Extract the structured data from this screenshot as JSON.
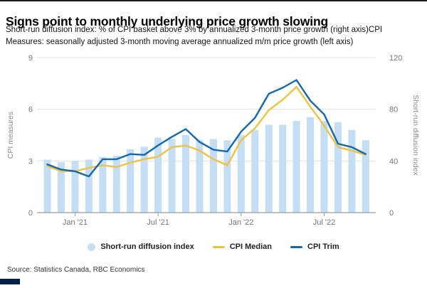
{
  "header": {
    "title": "Signs point to monthly underlying price growth slowing",
    "subtitle_line1": "Short-run diffusion index: % of CPI basket above 3% by annualized 3-month price growth (right axis)CPI",
    "subtitle_line2": "Measures: seasonally adjusted 3-month moving average annualized m/m price growth (left axis)"
  },
  "chart_data": {
    "type": "combo-bar-line",
    "categories": [
      "Nov 2020",
      "Dec 2020",
      "Jan 2021",
      "Feb 2021",
      "Mar 2021",
      "Apr 2021",
      "May 2021",
      "Jun 2021",
      "Jul 2021",
      "Aug 2021",
      "Sep 2021",
      "Oct 2021",
      "Nov 2021",
      "Dec 2021",
      "Jan 2022",
      "Feb 2022",
      "Mar 2022",
      "Apr 2022",
      "May 2022",
      "Jun 2022",
      "Jul 2022",
      "Aug 2022",
      "Sep 2022",
      "Oct 2022"
    ],
    "series": [
      {
        "name": "Short-run diffusion index",
        "type": "bar",
        "axis": "right",
        "color": "#c3def5",
        "values": [
          41,
          39,
          40,
          41,
          43,
          44,
          49,
          51,
          58,
          57,
          60,
          56,
          57,
          56,
          60,
          64,
          68,
          68,
          71,
          74,
          71,
          70,
          64,
          56
        ]
      },
      {
        "name": "CPI Median",
        "type": "line",
        "axis": "left",
        "color": "#f2c23e",
        "values": [
          2.7,
          2.4,
          2.4,
          2.6,
          2.75,
          2.65,
          2.9,
          3.1,
          3.25,
          3.8,
          3.9,
          3.6,
          3.1,
          2.75,
          4.2,
          4.9,
          5.95,
          6.55,
          7.3,
          6.15,
          5.05,
          3.8,
          3.6,
          3.35
        ]
      },
      {
        "name": "CPI Trim",
        "type": "line",
        "axis": "left",
        "color": "#1268b1",
        "values": [
          2.8,
          2.5,
          2.4,
          2.1,
          3.1,
          3.1,
          3.4,
          3.35,
          3.9,
          4.4,
          4.85,
          4.1,
          3.65,
          3.55,
          4.7,
          5.5,
          6.9,
          7.25,
          7.7,
          6.5,
          5.7,
          4.0,
          3.8,
          3.4
        ]
      }
    ],
    "x_ticks": [
      {
        "index": 2,
        "label": "Jan '21"
      },
      {
        "index": 8,
        "label": "Jul '21"
      },
      {
        "index": 14,
        "label": "Jan '22"
      },
      {
        "index": 20,
        "label": "Jul '22"
      }
    ],
    "left_axis": {
      "title": "CPI measures",
      "ticks": [
        0,
        3,
        6,
        9
      ],
      "range": [
        0,
        9
      ]
    },
    "right_axis": {
      "title": "Short-run diffusion index",
      "ticks": [
        0,
        40,
        80,
        120
      ],
      "range": [
        0,
        120
      ]
    },
    "grid": true,
    "legend_position": "bottom"
  },
  "legend": {
    "diffusion_label": "Short-run diffusion index",
    "median_label": "CPI Median",
    "trim_label": "CPI Trim"
  },
  "source": "Source: Statistics Canada, RBC Economics",
  "colors": {
    "bar": "#c3def5",
    "median_line": "#f2c23e",
    "trim_line": "#1268b1",
    "gridline": "#e3e3e3",
    "axis_line": "#9b9b9b",
    "tick_text": "#757575",
    "brand_navy": "#002145"
  }
}
